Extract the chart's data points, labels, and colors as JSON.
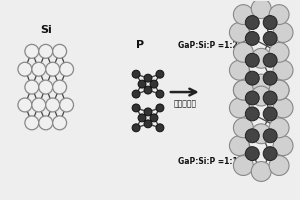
{
  "bg_color": "#eeeeee",
  "label_si": "Si",
  "label_p": "P",
  "label_ratio1": "GaP:Si:P =1:1:1",
  "label_ratio2": "GaP:Si:P =1:2:2",
  "label_method": "高能球磨法",
  "si_atom_color": "#f0f0f0",
  "si_edge_color": "#888888",
  "p_atom_color": "#333333",
  "p_edge_color": "#111111",
  "big_atom_color": "#d0d0d0",
  "big_edge_color": "#888888",
  "dark_atom_color": "#444444",
  "dark_edge_color": "#222222",
  "bond_color": "#444444",
  "text_color": "#111111"
}
